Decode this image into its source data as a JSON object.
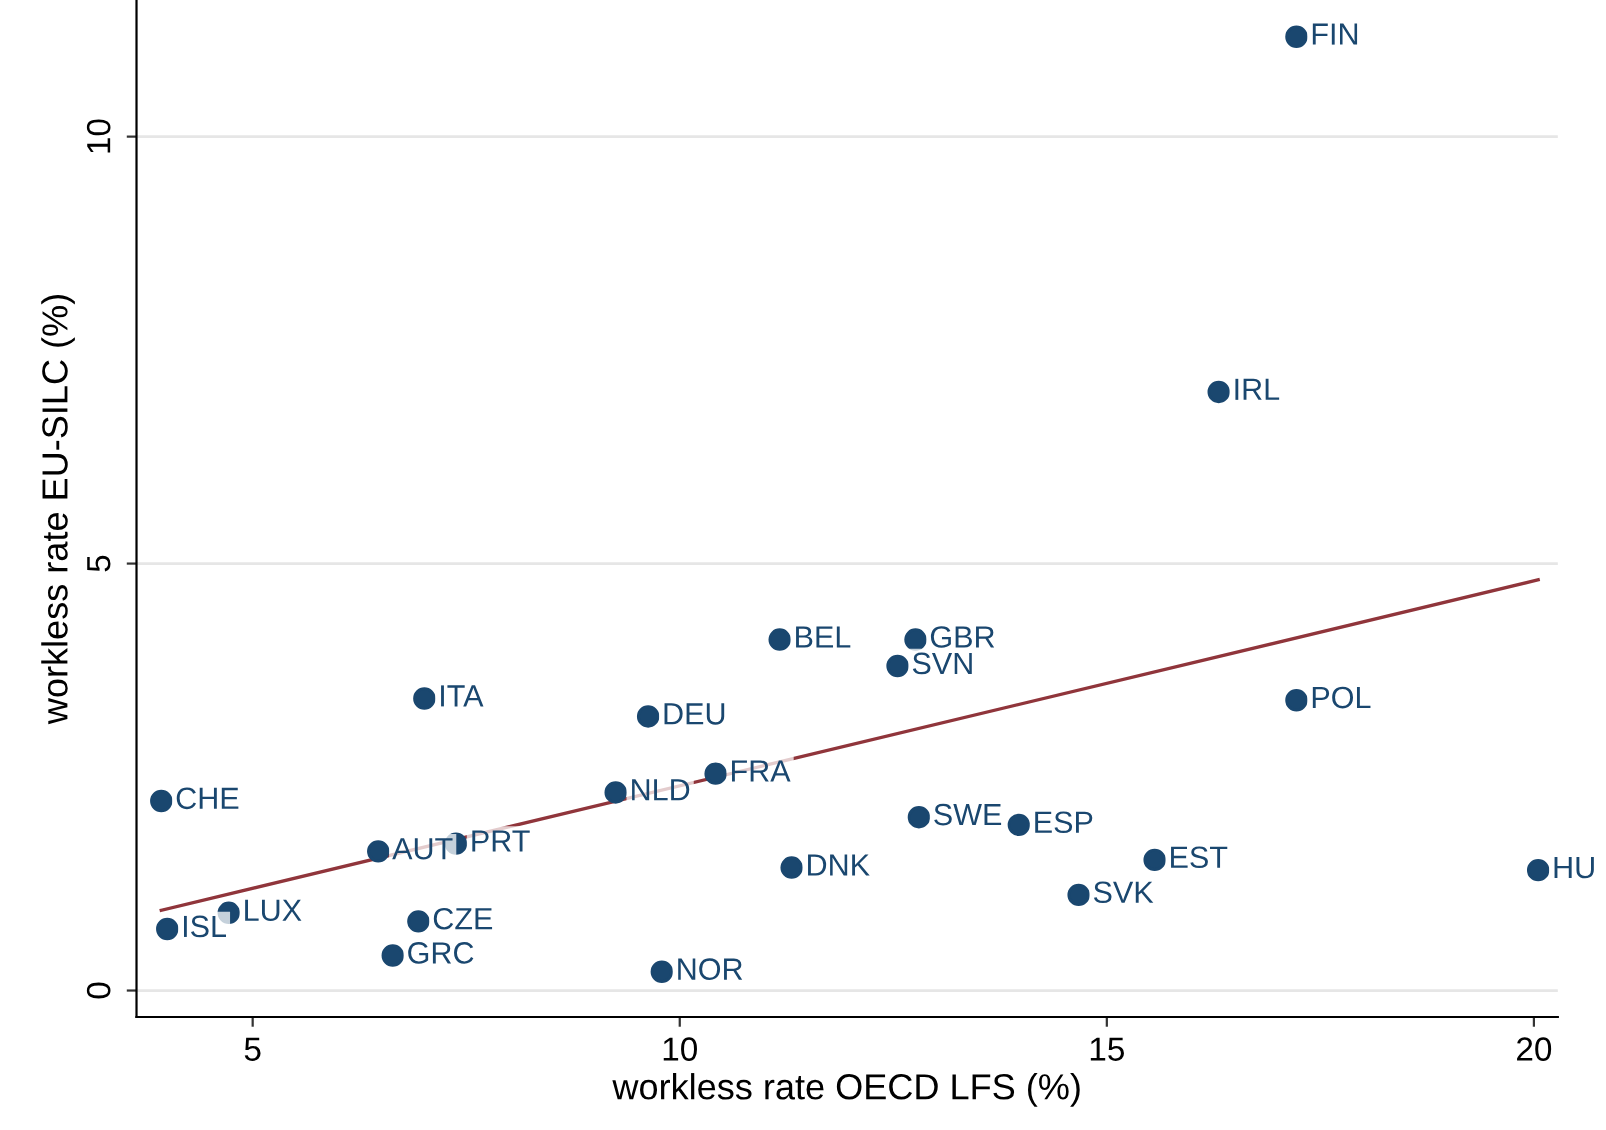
{
  "chart_data": {
    "type": "scatter",
    "xlabel": "workless rate OECD LFS (%)",
    "ylabel": "workless rate EU-SILC (%)",
    "xlim": [
      3.64,
      20.28
    ],
    "ylim": [
      -0.31,
      11.6
    ],
    "xticks": [
      5,
      10,
      15,
      20
    ],
    "yticks": [
      0,
      5,
      10
    ],
    "grid": "y",
    "series": [
      {
        "type": "scatter",
        "color": "#1a476f",
        "marker": "circle",
        "x": [
          17.22,
          16.31,
          17.22,
          20.05,
          11.17,
          12.76,
          12.55,
          7.01,
          9.63,
          9.25,
          10.42,
          3.93,
          12.8,
          13.97,
          6.47,
          7.38,
          11.31,
          15.56,
          14.67,
          4.0,
          4.72,
          6.94,
          6.64,
          9.79
        ],
        "values": [
          11.17,
          7.01,
          3.4,
          1.41,
          4.11,
          4.11,
          3.8,
          3.42,
          3.21,
          2.32,
          2.54,
          2.22,
          2.03,
          1.94,
          1.63,
          1.72,
          1.44,
          1.53,
          1.12,
          0.72,
          0.91,
          0.81,
          0.41,
          0.22
        ]
      },
      {
        "type": "line",
        "color": "#90353b",
        "x": [
          3.93,
          20.05
        ],
        "values": [
          0.94,
          4.81
        ]
      }
    ],
    "annotations": [
      {
        "text": "FIN",
        "x": 17.22,
        "y": 11.17
      },
      {
        "text": "IRL",
        "x": 16.31,
        "y": 7.01
      },
      {
        "text": "POL",
        "x": 17.22,
        "y": 3.4
      },
      {
        "text": "HU",
        "x": 20.05,
        "y": 1.41
      },
      {
        "text": "BEL",
        "x": 11.17,
        "y": 4.11
      },
      {
        "text": "GBR",
        "x": 12.76,
        "y": 4.11
      },
      {
        "text": "SVN",
        "x": 12.55,
        "y": 3.8
      },
      {
        "text": "ITA",
        "x": 7.01,
        "y": 3.42
      },
      {
        "text": "DEU",
        "x": 9.63,
        "y": 3.21
      },
      {
        "text": "NLD",
        "x": 9.25,
        "y": 2.32
      },
      {
        "text": "FRA",
        "x": 10.42,
        "y": 2.54
      },
      {
        "text": "CHE",
        "x": 3.93,
        "y": 2.22
      },
      {
        "text": "SWE",
        "x": 12.8,
        "y": 2.03
      },
      {
        "text": "ESP",
        "x": 13.97,
        "y": 1.94
      },
      {
        "text": "AUT",
        "x": 6.47,
        "y": 1.63
      },
      {
        "text": "PRT",
        "x": 7.38,
        "y": 1.72
      },
      {
        "text": "DNK",
        "x": 11.31,
        "y": 1.44
      },
      {
        "text": "EST",
        "x": 15.56,
        "y": 1.53
      },
      {
        "text": "SVK",
        "x": 14.67,
        "y": 1.12
      },
      {
        "text": "ISL",
        "x": 4.0,
        "y": 0.72
      },
      {
        "text": "LUX",
        "x": 4.72,
        "y": 0.91
      },
      {
        "text": "CZE",
        "x": 6.94,
        "y": 0.81
      },
      {
        "text": "GRC",
        "x": 6.64,
        "y": 0.41
      },
      {
        "text": "NOR",
        "x": 9.79,
        "y": 0.22
      }
    ]
  }
}
